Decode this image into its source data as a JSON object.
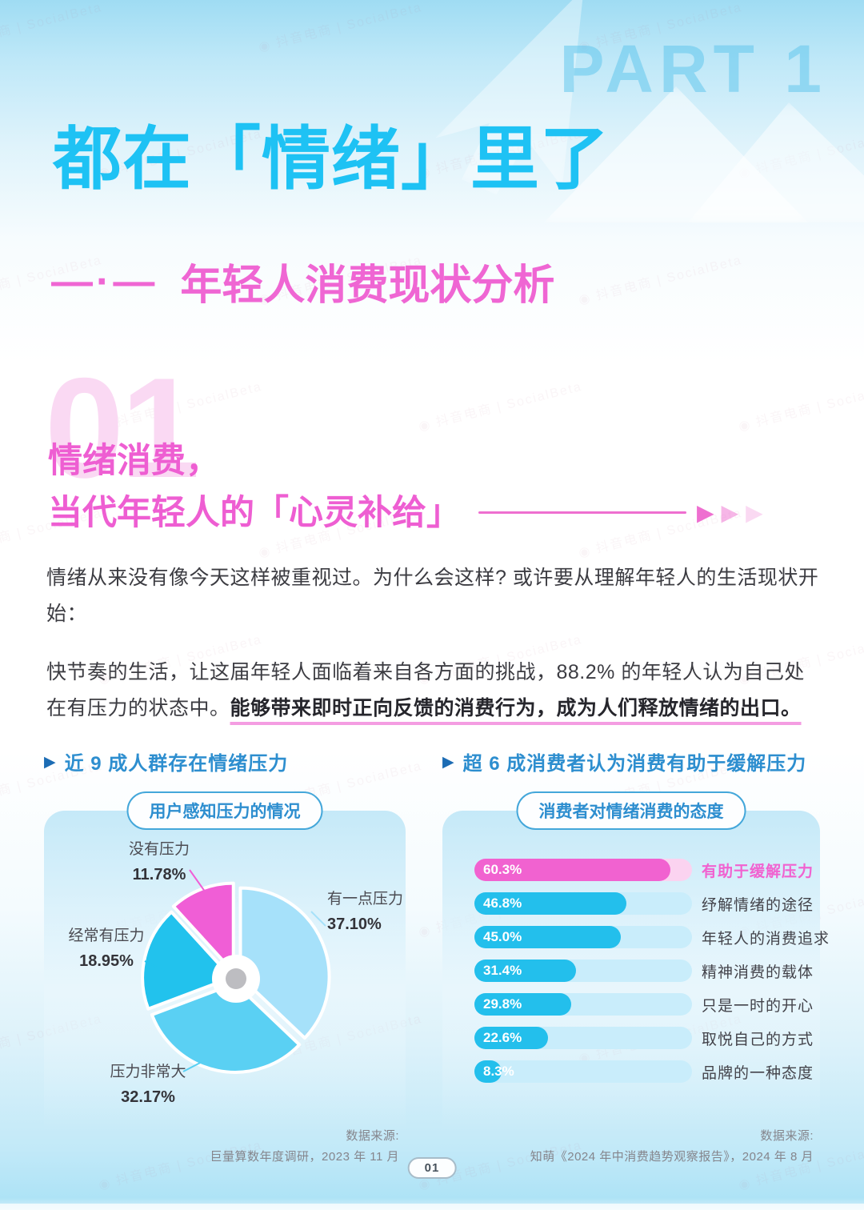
{
  "part_label": "PART 1",
  "title": "都在「情绪」里了",
  "subtitle_prefix": "—·—",
  "subtitle": "年轻人消费现状分析",
  "section": {
    "number": "01",
    "heading_line1": "情绪消费，",
    "heading_line2": "当代年轻人的「心灵补给」"
  },
  "paragraphs": {
    "p1": "情绪从来没有像今天这样被重视过。为什么会这样? 或许要从理解年轻人的生活现状开始：",
    "p2_normal": "快节奏的生活，让这届年轻人面临着来自各方面的挑战，88.2% 的年轻人认为自己处在有压力的状态中。",
    "p2_highlight": "能够带来即时正向反馈的消费行为，成为人们释放情绪的出口。"
  },
  "icons": {
    "bullet_arrow": "▶"
  },
  "left_panel": {
    "header": "近 9 成人群存在情绪压力",
    "badge": "用户感知压力的情况",
    "source_label": "数据来源:",
    "source": "巨量算数年度调研，2023 年 11 月"
  },
  "right_panel": {
    "header": "超 6 成消费者认为消费有助于缓解压力",
    "badge": "消费者对情绪消费的态度",
    "source_label": "数据来源:",
    "source": "知萌《2024 年中消费趋势观察报告》，2024 年 8 月"
  },
  "chart_data": [
    {
      "type": "pie",
      "title": "用户感知压力的情况",
      "start_angle_deg": 0,
      "direction": "clockwise",
      "slices": [
        {
          "label": "有一点压力",
          "value": 37.1,
          "value_label": "37.10%",
          "color": "#a6e1fa"
        },
        {
          "label": "压力非常大",
          "value": 32.17,
          "value_label": "32.17%",
          "color": "#5ad0f3"
        },
        {
          "label": "经常有压力",
          "value": 18.95,
          "value_label": "18.95%",
          "color": "#22c2ed"
        },
        {
          "label": "没有压力",
          "value": 11.78,
          "value_label": "11.78%",
          "color": "#f05ed6"
        }
      ]
    },
    {
      "type": "bar",
      "title": "消费者对情绪消费的态度",
      "orientation": "horizontal",
      "categories": [
        "有助于缓解压力",
        "纾解情绪的途径",
        "年轻人的消费追求",
        "精神消费的载体",
        "只是一时的开心",
        "取悦自己的方式",
        "品牌的一种态度"
      ],
      "values": [
        60.3,
        46.8,
        45.0,
        31.4,
        29.8,
        22.6,
        8.3
      ],
      "value_labels": [
        "60.3%",
        "46.8%",
        "45.0%",
        "31.4%",
        "29.8%",
        "22.6%",
        "8.3%"
      ],
      "highlight_index": 0,
      "xlim": [
        0,
        67
      ],
      "bar_color": "#23bfec",
      "track_color": "#c9edfb",
      "highlight_bar_color": "#f162d0",
      "highlight_track_color": "#fbd3f0",
      "highlight_label_color": "#f162d0",
      "label_color": "#43434a"
    }
  ],
  "page_number": "01",
  "watermark": "抖音电商 | SocialBeta",
  "colors": {
    "title_blue": "#1ec2f4",
    "accent_pink": "#ee5ed2",
    "header_blue": "#2d8ecf",
    "part_label_blue": "#8ad3ef"
  }
}
